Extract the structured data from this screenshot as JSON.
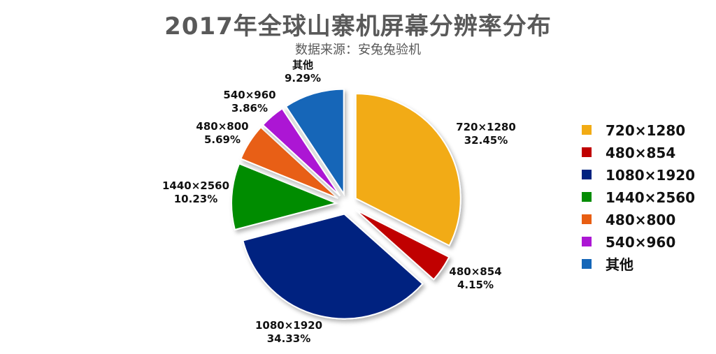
{
  "chart_data": {
    "type": "pie",
    "title": "2017年全球山寨机屏幕分辨率分布",
    "subtitle": "数据来源：安兔兔验机",
    "categories": [
      "720×1280",
      "480×854",
      "1080×1920",
      "1440×2560",
      "480×800",
      "540×960",
      "其他"
    ],
    "values": [
      32.45,
      4.15,
      34.33,
      10.23,
      5.69,
      3.86,
      9.29
    ],
    "value_labels": [
      "32.45%",
      "4.15%",
      "34.33%",
      "10.23%",
      "5.69%",
      "3.86%",
      "9.29%"
    ],
    "colors": [
      "#F2AB14",
      "#C00000",
      "#002280",
      "#038C03",
      "#E85E12",
      "#AC17D4",
      "#1466B8"
    ],
    "exploded": true,
    "legend_position": "right"
  }
}
